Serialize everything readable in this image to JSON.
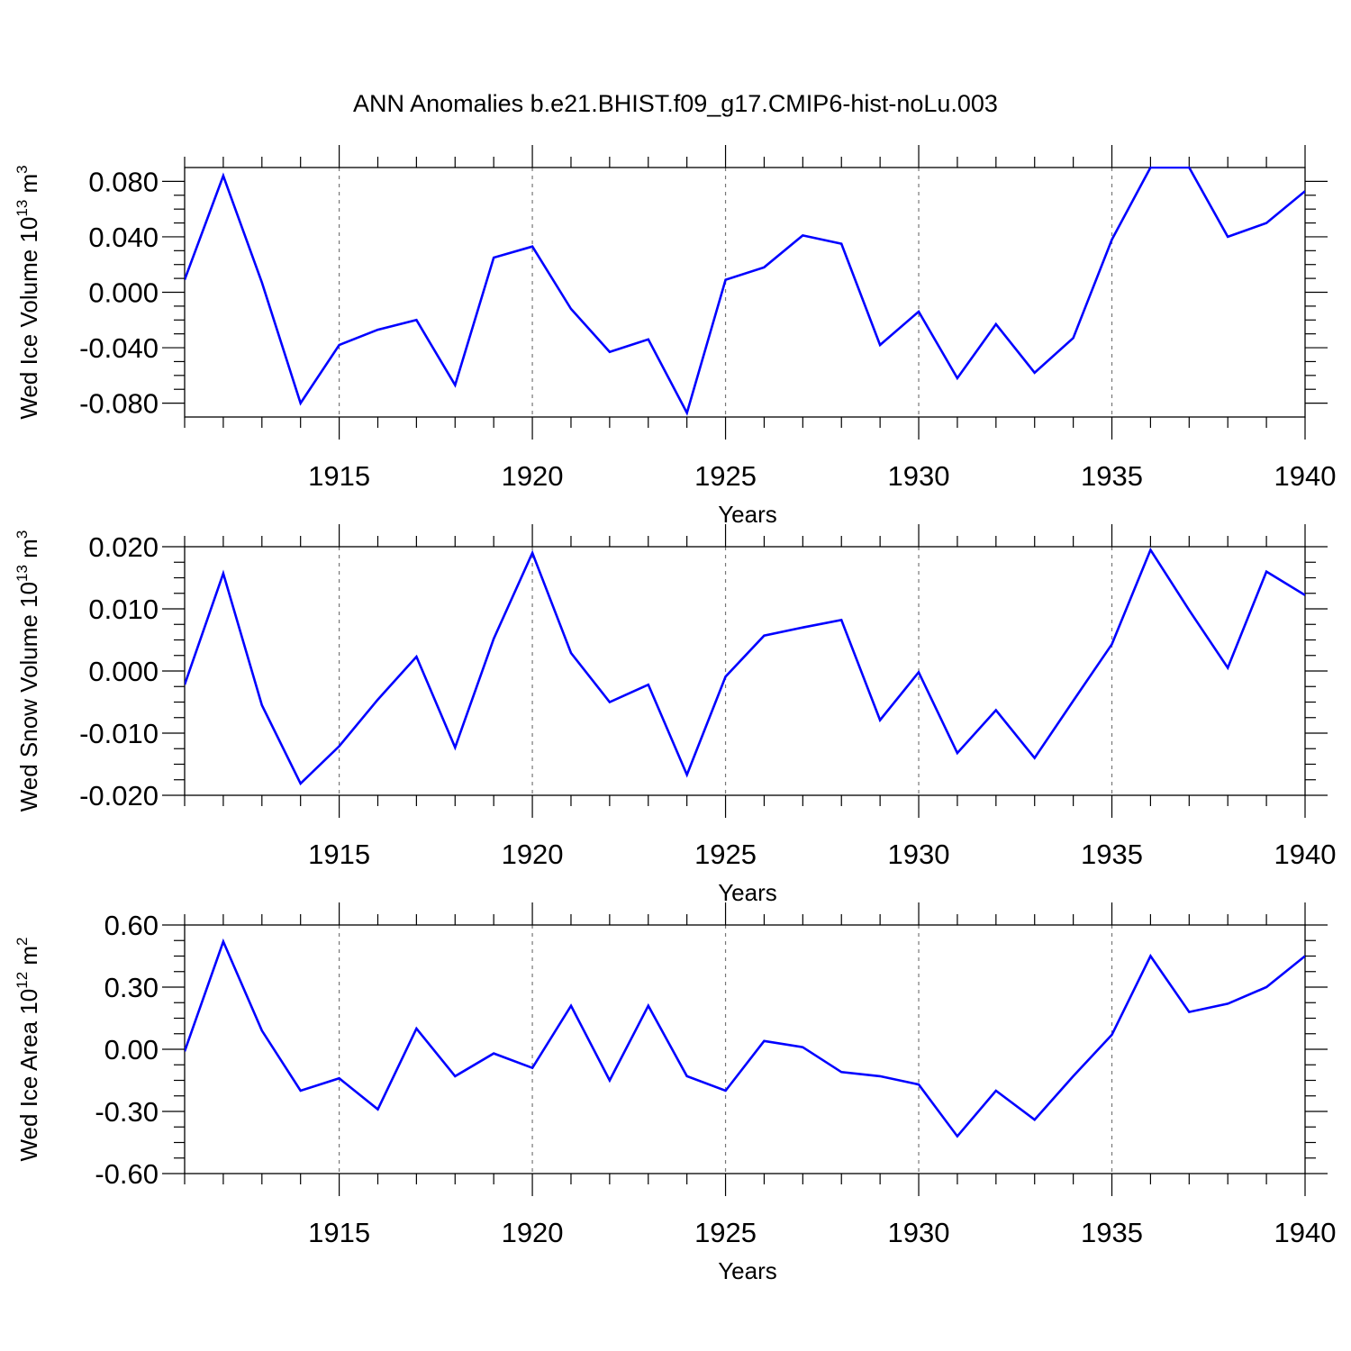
{
  "title": "ANN Anomalies b.e21.BHIST.f09_g17.CMIP6-hist-noLu.003",
  "chart_data": [
    {
      "type": "line",
      "ylabel": {
        "text": "Wed Ice Volume 10",
        "exp": "13",
        "unit": " m",
        "unit_exp": "3"
      },
      "xlabel": "Years",
      "xlim": [
        1911,
        1940
      ],
      "ylim": [
        -0.09,
        0.09
      ],
      "yticks": [
        -0.08,
        -0.04,
        0.0,
        0.04,
        0.08
      ],
      "ytick_labels": [
        "-0.080",
        "-0.040",
        "0.000",
        "0.040",
        "0.080"
      ],
      "xticks": [
        1915,
        1920,
        1925,
        1930,
        1935,
        1940
      ],
      "xtick_labels": [
        "1915",
        "1920",
        "1925",
        "1930",
        "1935",
        "1940"
      ],
      "grid": "vertical dashed at major x ticks",
      "color": "#0000ff",
      "x": [
        1911,
        1912,
        1913,
        1914,
        1915,
        1916,
        1917,
        1918,
        1919,
        1920,
        1921,
        1922,
        1923,
        1924,
        1925,
        1926,
        1927,
        1928,
        1929,
        1930,
        1931,
        1932,
        1933,
        1934,
        1935,
        1936,
        1937,
        1938,
        1939,
        1940
      ],
      "values": [
        0.009,
        0.084,
        0.007,
        -0.08,
        -0.038,
        -0.027,
        -0.02,
        -0.067,
        0.025,
        0.033,
        -0.012,
        -0.043,
        -0.034,
        -0.087,
        0.009,
        0.018,
        0.041,
        0.035,
        -0.038,
        -0.014,
        -0.062,
        -0.023,
        -0.058,
        -0.033,
        0.038,
        0.09,
        0.09,
        0.04,
        0.05,
        0.073
      ]
    },
    {
      "type": "line",
      "ylabel": {
        "text": "Wed Snow Volume 10",
        "exp": "13",
        "unit": " m",
        "unit_exp": "3"
      },
      "xlabel": "Years",
      "xlim": [
        1911,
        1940
      ],
      "ylim": [
        -0.02,
        0.02
      ],
      "yticks": [
        -0.02,
        -0.01,
        0.0,
        0.01,
        0.02
      ],
      "ytick_labels": [
        "-0.020",
        "-0.010",
        "0.000",
        "0.010",
        "0.020"
      ],
      "xticks": [
        1915,
        1920,
        1925,
        1930,
        1935,
        1940
      ],
      "xtick_labels": [
        "1915",
        "1920",
        "1925",
        "1930",
        "1935",
        "1940"
      ],
      "grid": "vertical dashed at major x ticks",
      "color": "#0000ff",
      "x": [
        1911,
        1912,
        1913,
        1914,
        1915,
        1916,
        1917,
        1918,
        1919,
        1920,
        1921,
        1922,
        1923,
        1924,
        1925,
        1926,
        1927,
        1928,
        1929,
        1930,
        1931,
        1932,
        1933,
        1934,
        1935,
        1936,
        1937,
        1938,
        1939,
        1940
      ],
      "values": [
        -0.0022,
        0.0157,
        -0.0055,
        -0.0181,
        -0.0121,
        -0.0046,
        0.0023,
        -0.0123,
        0.0052,
        0.019,
        0.0029,
        -0.005,
        -0.0022,
        -0.0167,
        -0.0009,
        0.0057,
        0.007,
        0.0082,
        -0.0079,
        -0.0002,
        -0.0132,
        -0.0063,
        -0.014,
        -0.0048,
        0.0043,
        0.0195,
        0.0098,
        0.0005,
        0.016,
        0.0122
      ]
    },
    {
      "type": "line",
      "ylabel": {
        "text": "Wed Ice Area 10",
        "exp": "12",
        "unit": " m",
        "unit_exp": "2"
      },
      "xlabel": "Years",
      "xlim": [
        1911,
        1940
      ],
      "ylim": [
        -0.6,
        0.6
      ],
      "yticks": [
        -0.6,
        -0.3,
        0.0,
        0.3,
        0.6
      ],
      "ytick_labels": [
        "-0.60",
        "-0.30",
        "0.00",
        "0.30",
        "0.60"
      ],
      "xticks": [
        1915,
        1920,
        1925,
        1930,
        1935,
        1940
      ],
      "xtick_labels": [
        "1915",
        "1920",
        "1925",
        "1930",
        "1935",
        "1940"
      ],
      "grid": "vertical dashed at major x ticks",
      "color": "#0000ff",
      "x": [
        1911,
        1912,
        1913,
        1914,
        1915,
        1916,
        1917,
        1918,
        1919,
        1920,
        1921,
        1922,
        1923,
        1924,
        1925,
        1926,
        1927,
        1928,
        1929,
        1930,
        1931,
        1932,
        1933,
        1934,
        1935,
        1936,
        1937,
        1938,
        1939,
        1940
      ],
      "values": [
        -0.01,
        0.52,
        0.09,
        -0.2,
        -0.14,
        -0.29,
        0.1,
        -0.13,
        -0.02,
        -0.09,
        0.21,
        -0.15,
        0.21,
        -0.13,
        -0.2,
        0.04,
        0.01,
        -0.11,
        -0.13,
        -0.17,
        -0.42,
        -0.2,
        -0.34,
        -0.13,
        0.07,
        0.45,
        0.18,
        0.22,
        0.3,
        0.45
      ]
    }
  ]
}
